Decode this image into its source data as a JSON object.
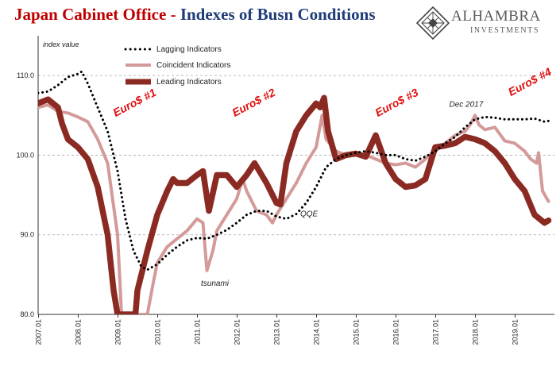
{
  "header": {
    "title_main": "Japan Cabinet Office",
    "title_sep": " - ",
    "title_rest": "Indexes of Busn Conditions"
  },
  "brand": {
    "name": "ALHAMBRA",
    "sub": "INVESTMENTS"
  },
  "colors": {
    "title_red": "#c00000",
    "title_blue": "#1f3c78",
    "lagging": "#000000",
    "coincident": "#d49a9a",
    "leading": "#8b2a22",
    "annotation_red": "#e01010"
  },
  "chart_data": {
    "type": "line",
    "ylabel": "index value",
    "ylim": [
      80,
      115
    ],
    "yticks": [
      "80.0",
      "90.0",
      "100.0",
      "110.0"
    ],
    "xticks": [
      "2007.01",
      "2008.01",
      "2009.01",
      "2010.01",
      "2011.01",
      "2012.01",
      "2013.01",
      "2014.01",
      "2015.01",
      "2016.01",
      "2017.01",
      "2018.01",
      "2019.01"
    ],
    "grid": "horizontal dashed",
    "legend_position": "top-left",
    "series": [
      {
        "name": "Lagging Indicators",
        "style": "dotted",
        "points": [
          [
            2007.0,
            107.8
          ],
          [
            2007.25,
            108.0
          ],
          [
            2007.5,
            108.8
          ],
          [
            2007.75,
            109.8
          ],
          [
            2008.0,
            110.2
          ],
          [
            2008.1,
            110.5
          ],
          [
            2008.25,
            109.0
          ],
          [
            2008.5,
            106.0
          ],
          [
            2008.75,
            103.0
          ],
          [
            2009.0,
            98.0
          ],
          [
            2009.2,
            92.0
          ],
          [
            2009.4,
            88.0
          ],
          [
            2009.6,
            86.0
          ],
          [
            2009.75,
            85.6
          ],
          [
            2010.0,
            86.3
          ],
          [
            2010.25,
            87.5
          ],
          [
            2010.5,
            88.5
          ],
          [
            2010.75,
            89.3
          ],
          [
            2011.0,
            89.6
          ],
          [
            2011.25,
            89.5
          ],
          [
            2011.5,
            90.0
          ],
          [
            2011.75,
            90.6
          ],
          [
            2012.0,
            91.5
          ],
          [
            2012.25,
            92.5
          ],
          [
            2012.5,
            93.0
          ],
          [
            2012.75,
            93.0
          ],
          [
            2013.0,
            92.3
          ],
          [
            2013.25,
            92.0
          ],
          [
            2013.5,
            92.6
          ],
          [
            2013.75,
            94.0
          ],
          [
            2014.0,
            96.0
          ],
          [
            2014.25,
            98.5
          ],
          [
            2014.5,
            99.5
          ],
          [
            2014.75,
            100.0
          ],
          [
            2015.0,
            100.3
          ],
          [
            2015.25,
            100.5
          ],
          [
            2015.5,
            100.3
          ],
          [
            2015.75,
            100.0
          ],
          [
            2016.0,
            100.0
          ],
          [
            2016.25,
            99.5
          ],
          [
            2016.5,
            99.3
          ],
          [
            2016.75,
            99.8
          ],
          [
            2017.0,
            100.5
          ],
          [
            2017.25,
            101.5
          ],
          [
            2017.5,
            102.3
          ],
          [
            2017.75,
            103.5
          ],
          [
            2018.0,
            104.5
          ],
          [
            2018.25,
            104.8
          ],
          [
            2018.5,
            104.7
          ],
          [
            2018.75,
            104.5
          ],
          [
            2019.0,
            104.5
          ],
          [
            2019.25,
            104.5
          ],
          [
            2019.5,
            104.6
          ],
          [
            2019.75,
            104.2
          ],
          [
            2019.85,
            104.3
          ]
        ]
      },
      {
        "name": "Coincident Indicators",
        "style": "solid-light",
        "points": [
          [
            2007.0,
            106.0
          ],
          [
            2007.25,
            106.3
          ],
          [
            2007.5,
            105.5
          ],
          [
            2007.75,
            105.3
          ],
          [
            2008.0,
            104.8
          ],
          [
            2008.25,
            104.2
          ],
          [
            2008.5,
            102.0
          ],
          [
            2008.75,
            99.0
          ],
          [
            2009.0,
            90.0
          ],
          [
            2009.1,
            80.0
          ],
          [
            2009.75,
            80.0
          ],
          [
            2009.9,
            84.0
          ],
          [
            2010.0,
            86.5
          ],
          [
            2010.25,
            88.5
          ],
          [
            2010.5,
            89.5
          ],
          [
            2010.75,
            90.5
          ],
          [
            2011.0,
            92.0
          ],
          [
            2011.15,
            91.5
          ],
          [
            2011.25,
            85.5
          ],
          [
            2011.4,
            88.0
          ],
          [
            2011.5,
            90.5
          ],
          [
            2011.75,
            92.5
          ],
          [
            2012.0,
            94.5
          ],
          [
            2012.15,
            97.0
          ],
          [
            2012.25,
            95.5
          ],
          [
            2012.5,
            93.0
          ],
          [
            2012.75,
            92.5
          ],
          [
            2012.9,
            91.5
          ],
          [
            2013.0,
            92.5
          ],
          [
            2013.25,
            94.5
          ],
          [
            2013.5,
            96.5
          ],
          [
            2013.75,
            99.0
          ],
          [
            2014.0,
            101.0
          ],
          [
            2014.15,
            105.0
          ],
          [
            2014.25,
            102.0
          ],
          [
            2014.5,
            100.5
          ],
          [
            2014.75,
            100.0
          ],
          [
            2015.0,
            100.2
          ],
          [
            2015.25,
            100.0
          ],
          [
            2015.5,
            99.5
          ],
          [
            2015.75,
            99.0
          ],
          [
            2016.0,
            98.8
          ],
          [
            2016.25,
            99.0
          ],
          [
            2016.5,
            98.5
          ],
          [
            2016.75,
            99.5
          ],
          [
            2017.0,
            100.5
          ],
          [
            2017.25,
            101.5
          ],
          [
            2017.5,
            102.5
          ],
          [
            2017.75,
            103.0
          ],
          [
            2017.9,
            104.0
          ],
          [
            2018.0,
            105.0
          ],
          [
            2018.1,
            103.8
          ],
          [
            2018.25,
            103.2
          ],
          [
            2018.5,
            103.5
          ],
          [
            2018.75,
            101.8
          ],
          [
            2019.0,
            101.5
          ],
          [
            2019.25,
            100.5
          ],
          [
            2019.4,
            99.5
          ],
          [
            2019.55,
            99.0
          ],
          [
            2019.6,
            100.3
          ],
          [
            2019.7,
            95.5
          ],
          [
            2019.85,
            94.2
          ]
        ]
      },
      {
        "name": "Leading Indicators",
        "style": "solid-heavy",
        "points": [
          [
            2007.0,
            106.5
          ],
          [
            2007.25,
            107.0
          ],
          [
            2007.5,
            106.0
          ],
          [
            2007.6,
            104.0
          ],
          [
            2007.75,
            102.0
          ],
          [
            2008.0,
            101.0
          ],
          [
            2008.25,
            99.5
          ],
          [
            2008.5,
            96.0
          ],
          [
            2008.75,
            90.0
          ],
          [
            2008.9,
            83.0
          ],
          [
            2009.0,
            80.0
          ],
          [
            2009.3,
            80.0
          ],
          [
            2009.45,
            80.0
          ],
          [
            2009.5,
            83.0
          ],
          [
            2009.75,
            88.0
          ],
          [
            2010.0,
            92.5
          ],
          [
            2010.25,
            95.5
          ],
          [
            2010.4,
            97.0
          ],
          [
            2010.5,
            96.5
          ],
          [
            2010.75,
            96.5
          ],
          [
            2011.0,
            97.5
          ],
          [
            2011.15,
            98.0
          ],
          [
            2011.3,
            93.0
          ],
          [
            2011.5,
            97.5
          ],
          [
            2011.75,
            97.5
          ],
          [
            2012.0,
            96.0
          ],
          [
            2012.25,
            97.5
          ],
          [
            2012.45,
            99.0
          ],
          [
            2012.75,
            96.5
          ],
          [
            2013.0,
            94.0
          ],
          [
            2013.1,
            93.8
          ],
          [
            2013.25,
            99.0
          ],
          [
            2013.5,
            103.0
          ],
          [
            2013.75,
            105.0
          ],
          [
            2014.0,
            106.5
          ],
          [
            2014.1,
            106.0
          ],
          [
            2014.2,
            107.2
          ],
          [
            2014.3,
            103.0
          ],
          [
            2014.5,
            99.5
          ],
          [
            2014.75,
            100.0
          ],
          [
            2015.0,
            100.2
          ],
          [
            2015.25,
            99.8
          ],
          [
            2015.5,
            102.5
          ],
          [
            2015.75,
            99.0
          ],
          [
            2016.0,
            97.0
          ],
          [
            2016.25,
            96.0
          ],
          [
            2016.5,
            96.2
          ],
          [
            2016.75,
            97.0
          ],
          [
            2017.0,
            101.0
          ],
          [
            2017.25,
            101.2
          ],
          [
            2017.5,
            101.5
          ],
          [
            2017.75,
            102.3
          ],
          [
            2018.0,
            102.0
          ],
          [
            2018.25,
            101.5
          ],
          [
            2018.5,
            100.5
          ],
          [
            2018.75,
            99.0
          ],
          [
            2019.0,
            97.0
          ],
          [
            2019.25,
            95.5
          ],
          [
            2019.5,
            92.5
          ],
          [
            2019.75,
            91.5
          ],
          [
            2019.85,
            91.8
          ]
        ]
      }
    ],
    "annotations": [
      {
        "text": "Euro$ #1",
        "color": "red",
        "x": 2008.95,
        "y": 104.8
      },
      {
        "text": "Euro$ #2",
        "color": "red",
        "x": 2011.95,
        "y": 104.8
      },
      {
        "text": "Euro$ #3",
        "color": "red",
        "x": 2015.55,
        "y": 104.8
      },
      {
        "text": "Euro$ #4",
        "color": "red",
        "x": 2018.9,
        "y": 107.4
      },
      {
        "text": "Dec 2017",
        "color": "black",
        "x": 2017.35,
        "y": 106.1
      },
      {
        "text": "QQE",
        "color": "black",
        "x": 2013.6,
        "y": 92.3
      },
      {
        "text": "tsunami",
        "color": "black",
        "x": 2011.1,
        "y": 83.6
      }
    ]
  }
}
